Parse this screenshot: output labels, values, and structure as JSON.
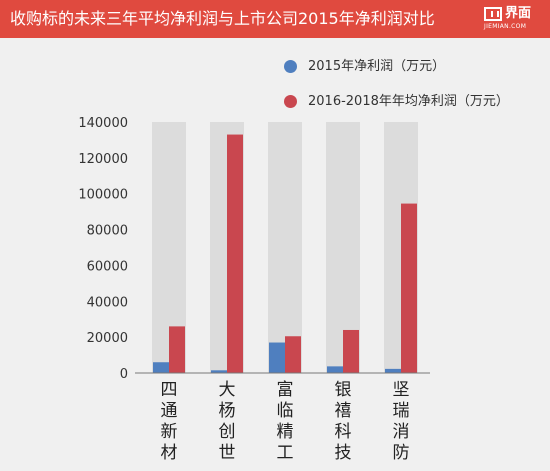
{
  "header": {
    "title": "收购标的未来三年平均净利润与上市公司2015年净利润对比",
    "logo_name": "界面",
    "logo_url": "JIEMIAN.COM",
    "background": "#e04a3f"
  },
  "chart_data": {
    "type": "bar",
    "title": "收购标的未来三年平均净利润与上市公司2015年净利润对比",
    "categories": [
      "四通新材",
      "大杨创世",
      "富临精工",
      "银禧科技",
      "坚瑞消防"
    ],
    "series": [
      {
        "name": "2015年净利润（万元）",
        "color": "#4f7fbf",
        "values": [
          6000,
          1500,
          17000,
          3700,
          2300
        ]
      },
      {
        "name": "2016-2018年年均净利润（万元）",
        "color": "#c9474f",
        "values": [
          26000,
          133000,
          20500,
          24000,
          94500
        ]
      }
    ],
    "y_ticks": [
      0,
      20000,
      40000,
      60000,
      80000,
      100000,
      120000,
      140000
    ],
    "ylim": [
      0,
      140000
    ],
    "xlabel": "",
    "ylabel": "",
    "grid": false,
    "legend_position": "top-right",
    "column_background": "#dcdcdc"
  }
}
